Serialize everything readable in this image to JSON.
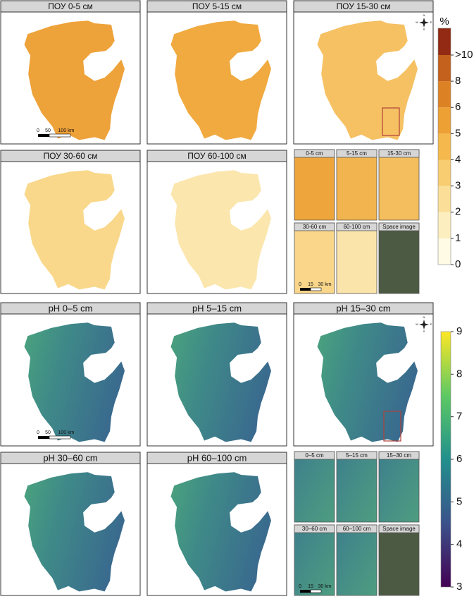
{
  "soc": {
    "panels": [
      "ПОУ 0-5 см",
      "ПОУ 5-15 см",
      "ПОУ 15-30 см",
      "ПОУ 30-60 см",
      "ПОУ 60-100 см"
    ],
    "insets": [
      "0-5 cm",
      "5-15 cm",
      "15-30 cm",
      "30-60 cm",
      "60-100 cm",
      "Space image"
    ],
    "scale_bar": [
      "0",
      "50",
      "100 km"
    ],
    "inset_scale_bar": [
      "0",
      "15",
      "30 km"
    ],
    "compass": [
      "N",
      "E",
      "S",
      "W"
    ],
    "legend": {
      "title": "%",
      "ticks": [
        0,
        1,
        2,
        3,
        4,
        5,
        6,
        8,
        {
          "value": 10,
          "label": ">10"
        }
      ],
      "colors": [
        "#fffbe4",
        "#fdeebf",
        "#fbdf98",
        "#f8cd72",
        "#f4b84c",
        "#eda034",
        "#dd8224",
        "#c4611c",
        "#932a14"
      ]
    }
  },
  "ph": {
    "panels": [
      "pH 0–5 cm",
      "pH 5–15 cm",
      "pH 15–30 cm",
      "pH 30–60 cm",
      "pH 60–100 cm"
    ],
    "insets": [
      "0–5 cm",
      "5–15 cm",
      "15–30 cm",
      "30–60 cm",
      "60–100 cm",
      "Space image"
    ],
    "scale_bar": [
      "0",
      "50",
      "100 km"
    ],
    "inset_scale_bar": [
      "0",
      "15",
      "30 km"
    ],
    "compass": [
      "N",
      "E",
      "S",
      "W"
    ],
    "legend": {
      "ylim": [
        3,
        9
      ],
      "ticks": [
        3,
        4,
        5,
        6,
        7,
        8,
        9
      ],
      "colors": [
        "#440154",
        "#3b528b",
        "#21908d",
        "#5dc963",
        "#fde725"
      ]
    }
  }
}
